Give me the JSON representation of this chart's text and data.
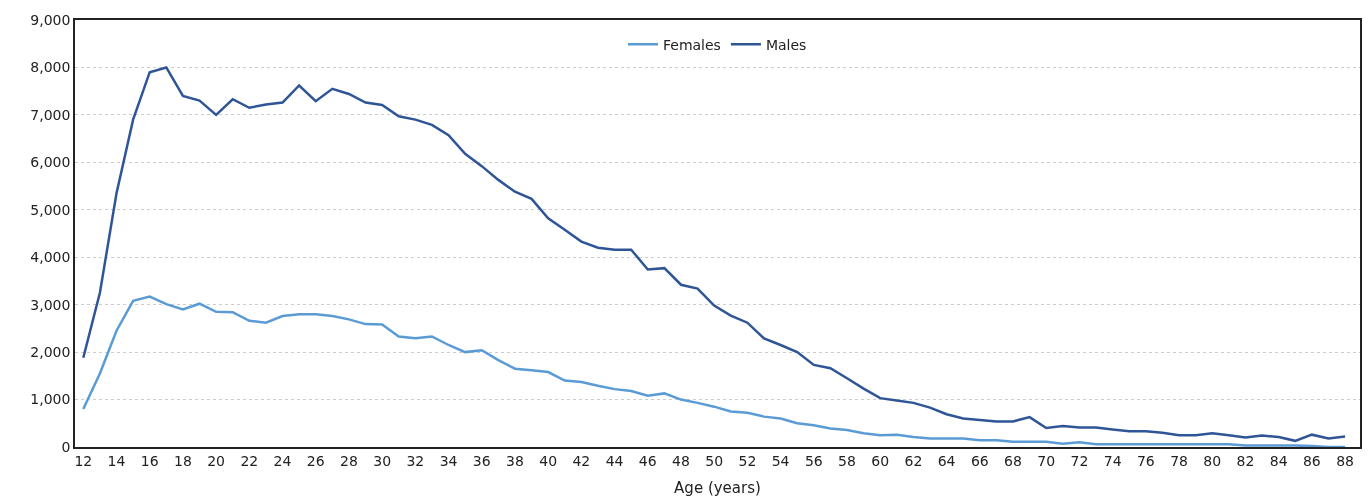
{
  "chart_data": {
    "type": "line",
    "xlabel": "Age (years)",
    "x": [
      12,
      13,
      14,
      15,
      16,
      17,
      18,
      19,
      20,
      21,
      22,
      23,
      24,
      25,
      26,
      27,
      28,
      29,
      30,
      31,
      32,
      33,
      34,
      35,
      36,
      37,
      38,
      39,
      40,
      41,
      42,
      43,
      44,
      45,
      46,
      47,
      48,
      49,
      50,
      51,
      52,
      53,
      54,
      55,
      56,
      57,
      58,
      59,
      60,
      61,
      62,
      63,
      64,
      65,
      66,
      67,
      68,
      69,
      70,
      71,
      72,
      73,
      74,
      75,
      76,
      77,
      78,
      79,
      80,
      81,
      82,
      83,
      84,
      85,
      86,
      87,
      88
    ],
    "series": [
      {
        "name": "Females",
        "color": "#5b9bd5",
        "values": [
          800,
          1550,
          2450,
          3080,
          3170,
          3010,
          2900,
          3020,
          2850,
          2840,
          2660,
          2620,
          2760,
          2800,
          2800,
          2760,
          2690,
          2590,
          2580,
          2330,
          2290,
          2330,
          2150,
          2000,
          2040,
          1830,
          1650,
          1620,
          1580,
          1400,
          1370,
          1290,
          1220,
          1180,
          1080,
          1130,
          1000,
          930,
          850,
          750,
          720,
          640,
          600,
          500,
          460,
          390,
          360,
          290,
          250,
          260,
          210,
          180,
          180,
          180,
          140,
          140,
          110,
          110,
          110,
          70,
          100,
          60,
          60,
          60,
          60,
          60,
          60,
          60,
          60,
          60,
          30,
          30,
          30,
          30,
          20,
          0,
          0
        ]
      },
      {
        "name": "Males",
        "color": "#2f5597",
        "values": [
          1880,
          3250,
          5350,
          6900,
          7900,
          8000,
          7400,
          7300,
          7000,
          7330,
          7150,
          7220,
          7260,
          7620,
          7290,
          7550,
          7440,
          7260,
          7210,
          6970,
          6900,
          6790,
          6570,
          6180,
          5920,
          5630,
          5380,
          5230,
          4820,
          4580,
          4330,
          4200,
          4160,
          4160,
          3740,
          3770,
          3420,
          3340,
          2980,
          2770,
          2620,
          2290,
          2150,
          2000,
          1730,
          1660,
          1450,
          1230,
          1030,
          980,
          930,
          830,
          690,
          600,
          570,
          540,
          540,
          630,
          400,
          440,
          410,
          410,
          370,
          330,
          330,
          300,
          250,
          250,
          290,
          250,
          200,
          240,
          210,
          130,
          260,
          180,
          220
        ]
      }
    ],
    "xlim": [
      11.5,
      88.9
    ],
    "xticks": [
      12,
      14,
      16,
      18,
      20,
      22,
      24,
      26,
      28,
      30,
      32,
      34,
      36,
      38,
      40,
      42,
      44,
      46,
      48,
      50,
      52,
      54,
      56,
      58,
      60,
      62,
      64,
      66,
      68,
      70,
      72,
      74,
      76,
      78,
      80,
      82,
      84,
      86,
      88
    ],
    "ylim": [
      0,
      9000
    ],
    "yticks": [
      {
        "value": 0,
        "label": "0"
      },
      {
        "value": 1000,
        "label": "1,000"
      },
      {
        "value": 2000,
        "label": "2,000"
      },
      {
        "value": 3000,
        "label": "3,000"
      },
      {
        "value": 4000,
        "label": "4,000"
      },
      {
        "value": 5000,
        "label": "5,000"
      },
      {
        "value": 6000,
        "label": "6,000"
      },
      {
        "value": 7000,
        "label": "7,000"
      },
      {
        "value": 8000,
        "label": "8,000"
      },
      {
        "value": 9000,
        "label": "9,000"
      }
    ],
    "grid": "y",
    "legend": "top",
    "marker": "none",
    "line_style": "solid"
  }
}
